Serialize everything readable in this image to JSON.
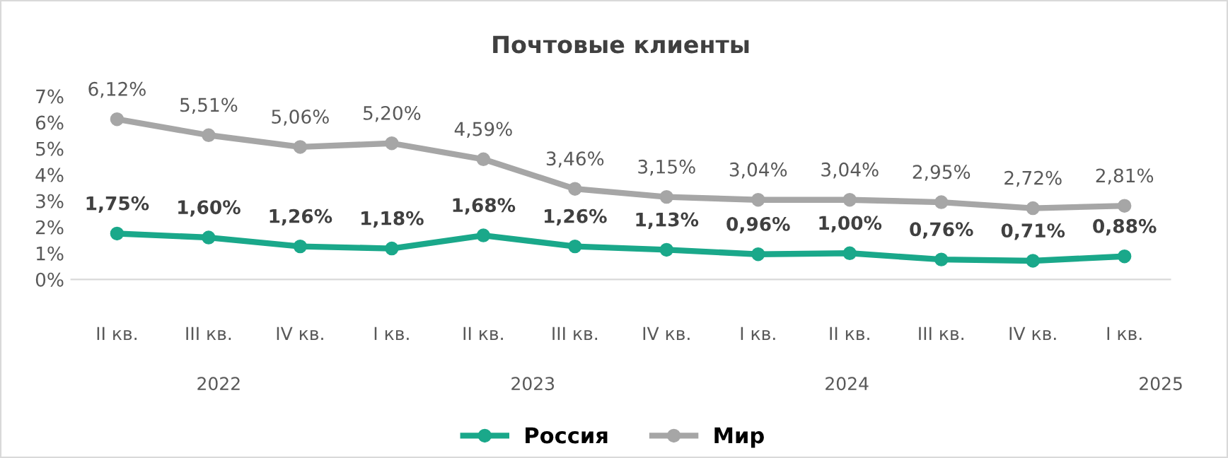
{
  "chart_data": {
    "type": "line",
    "title": "Почтовые клиенты",
    "categories": [
      "II кв.",
      "III кв.",
      "IV кв.",
      "I кв.",
      "II кв.",
      "III кв.",
      "IV кв.",
      "I кв.",
      "II кв.",
      "III кв.",
      "IV кв.",
      "I кв."
    ],
    "series": [
      {
        "name": "Россия",
        "color": "#1aa88a",
        "values": [
          1.75,
          1.6,
          1.26,
          1.18,
          1.68,
          1.26,
          1.13,
          0.96,
          1.0,
          0.76,
          0.71,
          0.88
        ],
        "value_labels": [
          "1,75%",
          "1,60%",
          "1,26%",
          "1,18%",
          "1,68%",
          "1,26%",
          "1,13%",
          "0,96%",
          "1,00%",
          "0,76%",
          "0,71%",
          "0,88%"
        ]
      },
      {
        "name": "Мир",
        "color": "#a6a6a6",
        "values": [
          6.12,
          5.51,
          5.06,
          5.2,
          4.59,
          3.46,
          3.15,
          3.04,
          3.04,
          2.95,
          2.72,
          2.81
        ],
        "value_labels": [
          "6,12%",
          "5,51%",
          "5,06%",
          "5,20%",
          "4,59%",
          "3,46%",
          "3,15%",
          "3,04%",
          "3,04%",
          "2,95%",
          "2,72%",
          "2,81%"
        ]
      }
    ],
    "ylim": [
      0,
      7
    ],
    "yticks": [
      {
        "value": 0,
        "label": "0%"
      },
      {
        "value": 1,
        "label": "1%"
      },
      {
        "value": 2,
        "label": "2%"
      },
      {
        "value": 3,
        "label": "3%"
      },
      {
        "value": 4,
        "label": "4%"
      },
      {
        "value": 5,
        "label": "5%"
      },
      {
        "value": 6,
        "label": "6%"
      },
      {
        "value": 7,
        "label": "7%"
      }
    ],
    "x2lim": [
      2021.53,
      2025.03
    ],
    "x2ticks": [
      2022,
      2023,
      2024,
      2025
    ],
    "grid": false,
    "legend": "bottom",
    "marker": "circle",
    "line_style": "solid"
  }
}
